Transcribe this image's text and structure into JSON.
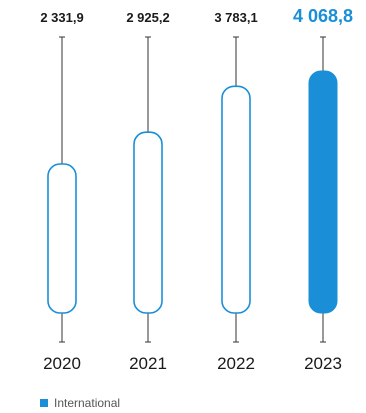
{
  "chart_data": {
    "type": "bar",
    "categories": [
      "2020",
      "2021",
      "2022",
      "2023"
    ],
    "series": [
      {
        "name": "International",
        "values": [
          2331.9,
          2925.2,
          3783.1,
          4068.8
        ],
        "labels": [
          "2 331,9",
          "2 925,2",
          "3 783,1",
          "4 068,8"
        ]
      }
    ],
    "highlight_index": 3,
    "legend": "bottom-left",
    "grid": false,
    "colors": {
      "bar_fill": "#1a8fd8",
      "bar_stroke": "#1a8fd8",
      "empty_fill": "#ffffff",
      "line": "#333333",
      "highlight_text": "#1a8fd8",
      "text": "#1a1a1a"
    }
  },
  "legend": {
    "label": "International"
  }
}
